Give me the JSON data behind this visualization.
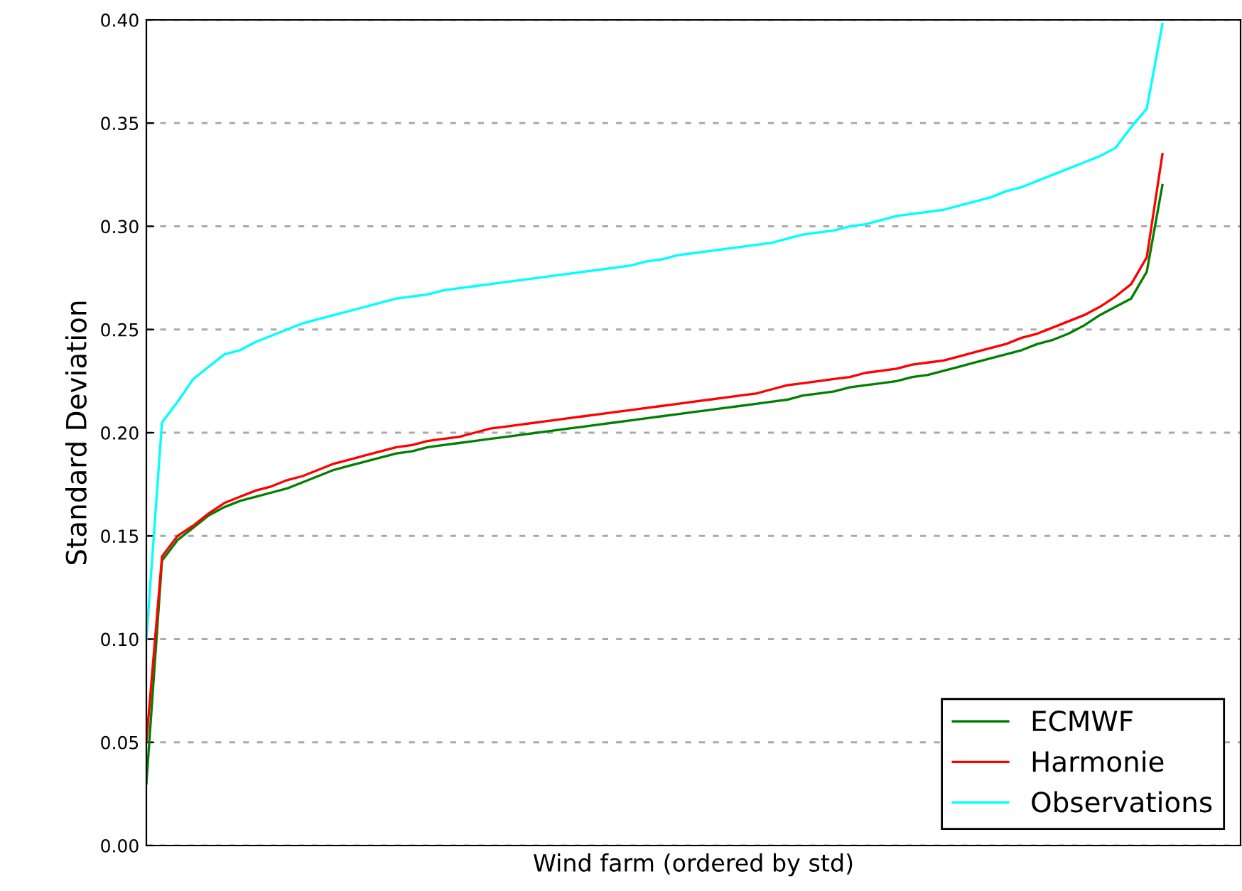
{
  "chart_data": {
    "type": "line",
    "xlabel": "Wind farm (ordered by std)",
    "ylabel": "Standard Deviation",
    "categories": [
      null,
      null,
      null,
      null,
      null,
      null,
      null,
      null,
      null,
      null,
      null,
      null,
      null,
      null,
      null,
      null,
      null,
      null,
      null,
      null,
      null,
      null,
      null,
      null,
      null,
      null,
      null,
      null,
      null,
      null,
      null,
      null,
      null,
      null,
      null,
      null,
      null,
      null,
      null,
      null,
      null,
      null,
      null,
      null,
      null,
      null,
      null,
      null,
      null,
      null,
      null,
      null,
      null,
      null,
      null,
      null,
      null,
      null,
      null,
      null,
      null,
      null,
      null,
      null,
      null,
      null,
      null,
      null,
      null,
      null,
      null
    ],
    "series": [
      {
        "name": "ECMWF",
        "color": "#008000",
        "values": [
          0.03,
          0.138,
          0.148,
          0.154,
          0.16,
          0.164,
          0.167,
          0.169,
          0.171,
          0.173,
          0.176,
          0.179,
          0.182,
          0.184,
          0.186,
          0.188,
          0.19,
          0.191,
          0.193,
          0.194,
          0.195,
          0.196,
          0.197,
          0.198,
          0.199,
          0.2,
          0.201,
          0.202,
          0.203,
          0.204,
          0.205,
          0.206,
          0.207,
          0.208,
          0.209,
          0.21,
          0.211,
          0.212,
          0.213,
          0.214,
          0.215,
          0.216,
          0.218,
          0.219,
          0.22,
          0.222,
          0.223,
          0.224,
          0.225,
          0.227,
          0.228,
          0.23,
          0.232,
          0.234,
          0.236,
          0.238,
          0.24,
          0.243,
          0.245,
          0.248,
          0.252,
          0.257,
          0.261,
          0.265,
          0.278,
          0.32,
          null,
          null,
          null,
          null,
          null
        ]
      },
      {
        "name": "Harmonie",
        "color": "#ff0000",
        "values": [
          0.05,
          0.14,
          0.15,
          0.155,
          0.161,
          0.166,
          0.169,
          0.172,
          0.174,
          0.177,
          0.179,
          0.182,
          0.185,
          0.187,
          0.189,
          0.191,
          0.193,
          0.194,
          0.196,
          0.197,
          0.198,
          0.2,
          0.202,
          0.203,
          0.204,
          0.205,
          0.206,
          0.207,
          0.208,
          0.209,
          0.21,
          0.211,
          0.212,
          0.213,
          0.214,
          0.215,
          0.216,
          0.217,
          0.218,
          0.219,
          0.221,
          0.223,
          0.224,
          0.225,
          0.226,
          0.227,
          0.229,
          0.23,
          0.231,
          0.233,
          0.234,
          0.235,
          0.237,
          0.239,
          0.241,
          0.243,
          0.246,
          0.248,
          0.251,
          0.254,
          0.257,
          0.261,
          0.266,
          0.272,
          0.285,
          0.335,
          null,
          null,
          null,
          null,
          null
        ]
      },
      {
        "name": "Observations",
        "color": "#00ffff",
        "values": [
          0.1,
          0.205,
          0.215,
          0.226,
          0.232,
          0.238,
          0.24,
          0.244,
          0.247,
          0.25,
          0.253,
          0.255,
          0.257,
          0.259,
          0.261,
          0.263,
          0.265,
          0.266,
          0.267,
          0.269,
          0.27,
          0.271,
          0.272,
          0.273,
          0.274,
          0.275,
          0.276,
          0.277,
          0.278,
          0.279,
          0.28,
          0.281,
          0.283,
          0.284,
          0.286,
          0.287,
          0.288,
          0.289,
          0.29,
          0.291,
          0.292,
          0.294,
          0.296,
          0.297,
          0.298,
          0.3,
          0.301,
          0.303,
          0.305,
          0.306,
          0.307,
          0.308,
          0.31,
          0.312,
          0.314,
          0.317,
          0.319,
          0.322,
          0.325,
          0.328,
          0.331,
          0.334,
          0.338,
          0.348,
          0.357,
          0.398,
          null,
          null,
          null,
          null,
          null
        ]
      }
    ],
    "ylim": [
      0,
      0.4
    ],
    "yticks": [
      {
        "value": 0,
        "label": "0.00"
      },
      {
        "value": 0.05,
        "label": "0.05"
      },
      {
        "value": 0.1,
        "label": "0.10"
      },
      {
        "value": 0.15,
        "label": "0.15"
      },
      {
        "value": 0.2,
        "label": "0.20"
      },
      {
        "value": 0.25,
        "label": "0.25"
      },
      {
        "value": 0.3,
        "label": "0.30"
      },
      {
        "value": 0.35,
        "label": "0.35"
      },
      {
        "value": 0.4,
        "label": "0.40"
      }
    ],
    "grid": "y",
    "legend": "bottom right",
    "tick_labels": "y",
    "line_style": "solid",
    "marker": "none"
  }
}
